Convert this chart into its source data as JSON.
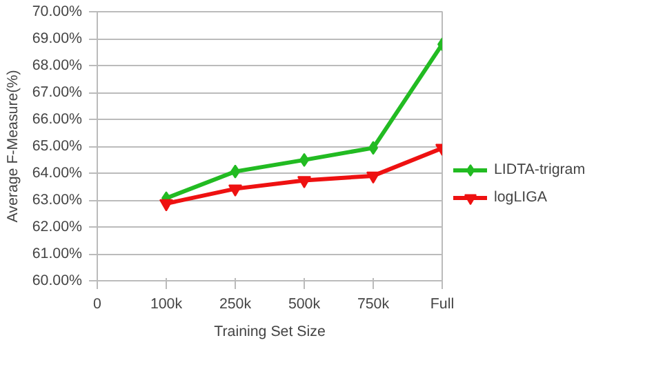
{
  "chart_data": {
    "type": "line",
    "xlabel": "Training Set Size",
    "ylabel": "Average F-Measure(%)",
    "categories": [
      "0",
      "100k",
      "250k",
      "500k",
      "750k",
      "Full"
    ],
    "ylim": [
      60,
      70
    ],
    "yticks": [
      {
        "value": 60,
        "label": "60.00%"
      },
      {
        "value": 61,
        "label": "61.00%"
      },
      {
        "value": 62,
        "label": "62.00%"
      },
      {
        "value": 63,
        "label": "63.00%"
      },
      {
        "value": 64,
        "label": "64.00%"
      },
      {
        "value": 65,
        "label": "65.00%"
      },
      {
        "value": 66,
        "label": "66.00%"
      },
      {
        "value": 67,
        "label": "67.00%"
      },
      {
        "value": 68,
        "label": "68.00%"
      },
      {
        "value": 69,
        "label": "69.00%"
      },
      {
        "value": 70,
        "label": "70.00%"
      }
    ],
    "grid": "y",
    "legend": "right",
    "series": [
      {
        "name": "LIDTA-trigram",
        "color": "#22bb22",
        "marker": "diamond",
        "values": [
          null,
          63.07,
          64.06,
          64.49,
          64.94,
          68.79
        ]
      },
      {
        "name": "logLIGA",
        "color": "#ee1111",
        "marker": "triangle",
        "values": [
          null,
          62.87,
          63.42,
          63.73,
          63.9,
          64.93
        ]
      }
    ]
  }
}
